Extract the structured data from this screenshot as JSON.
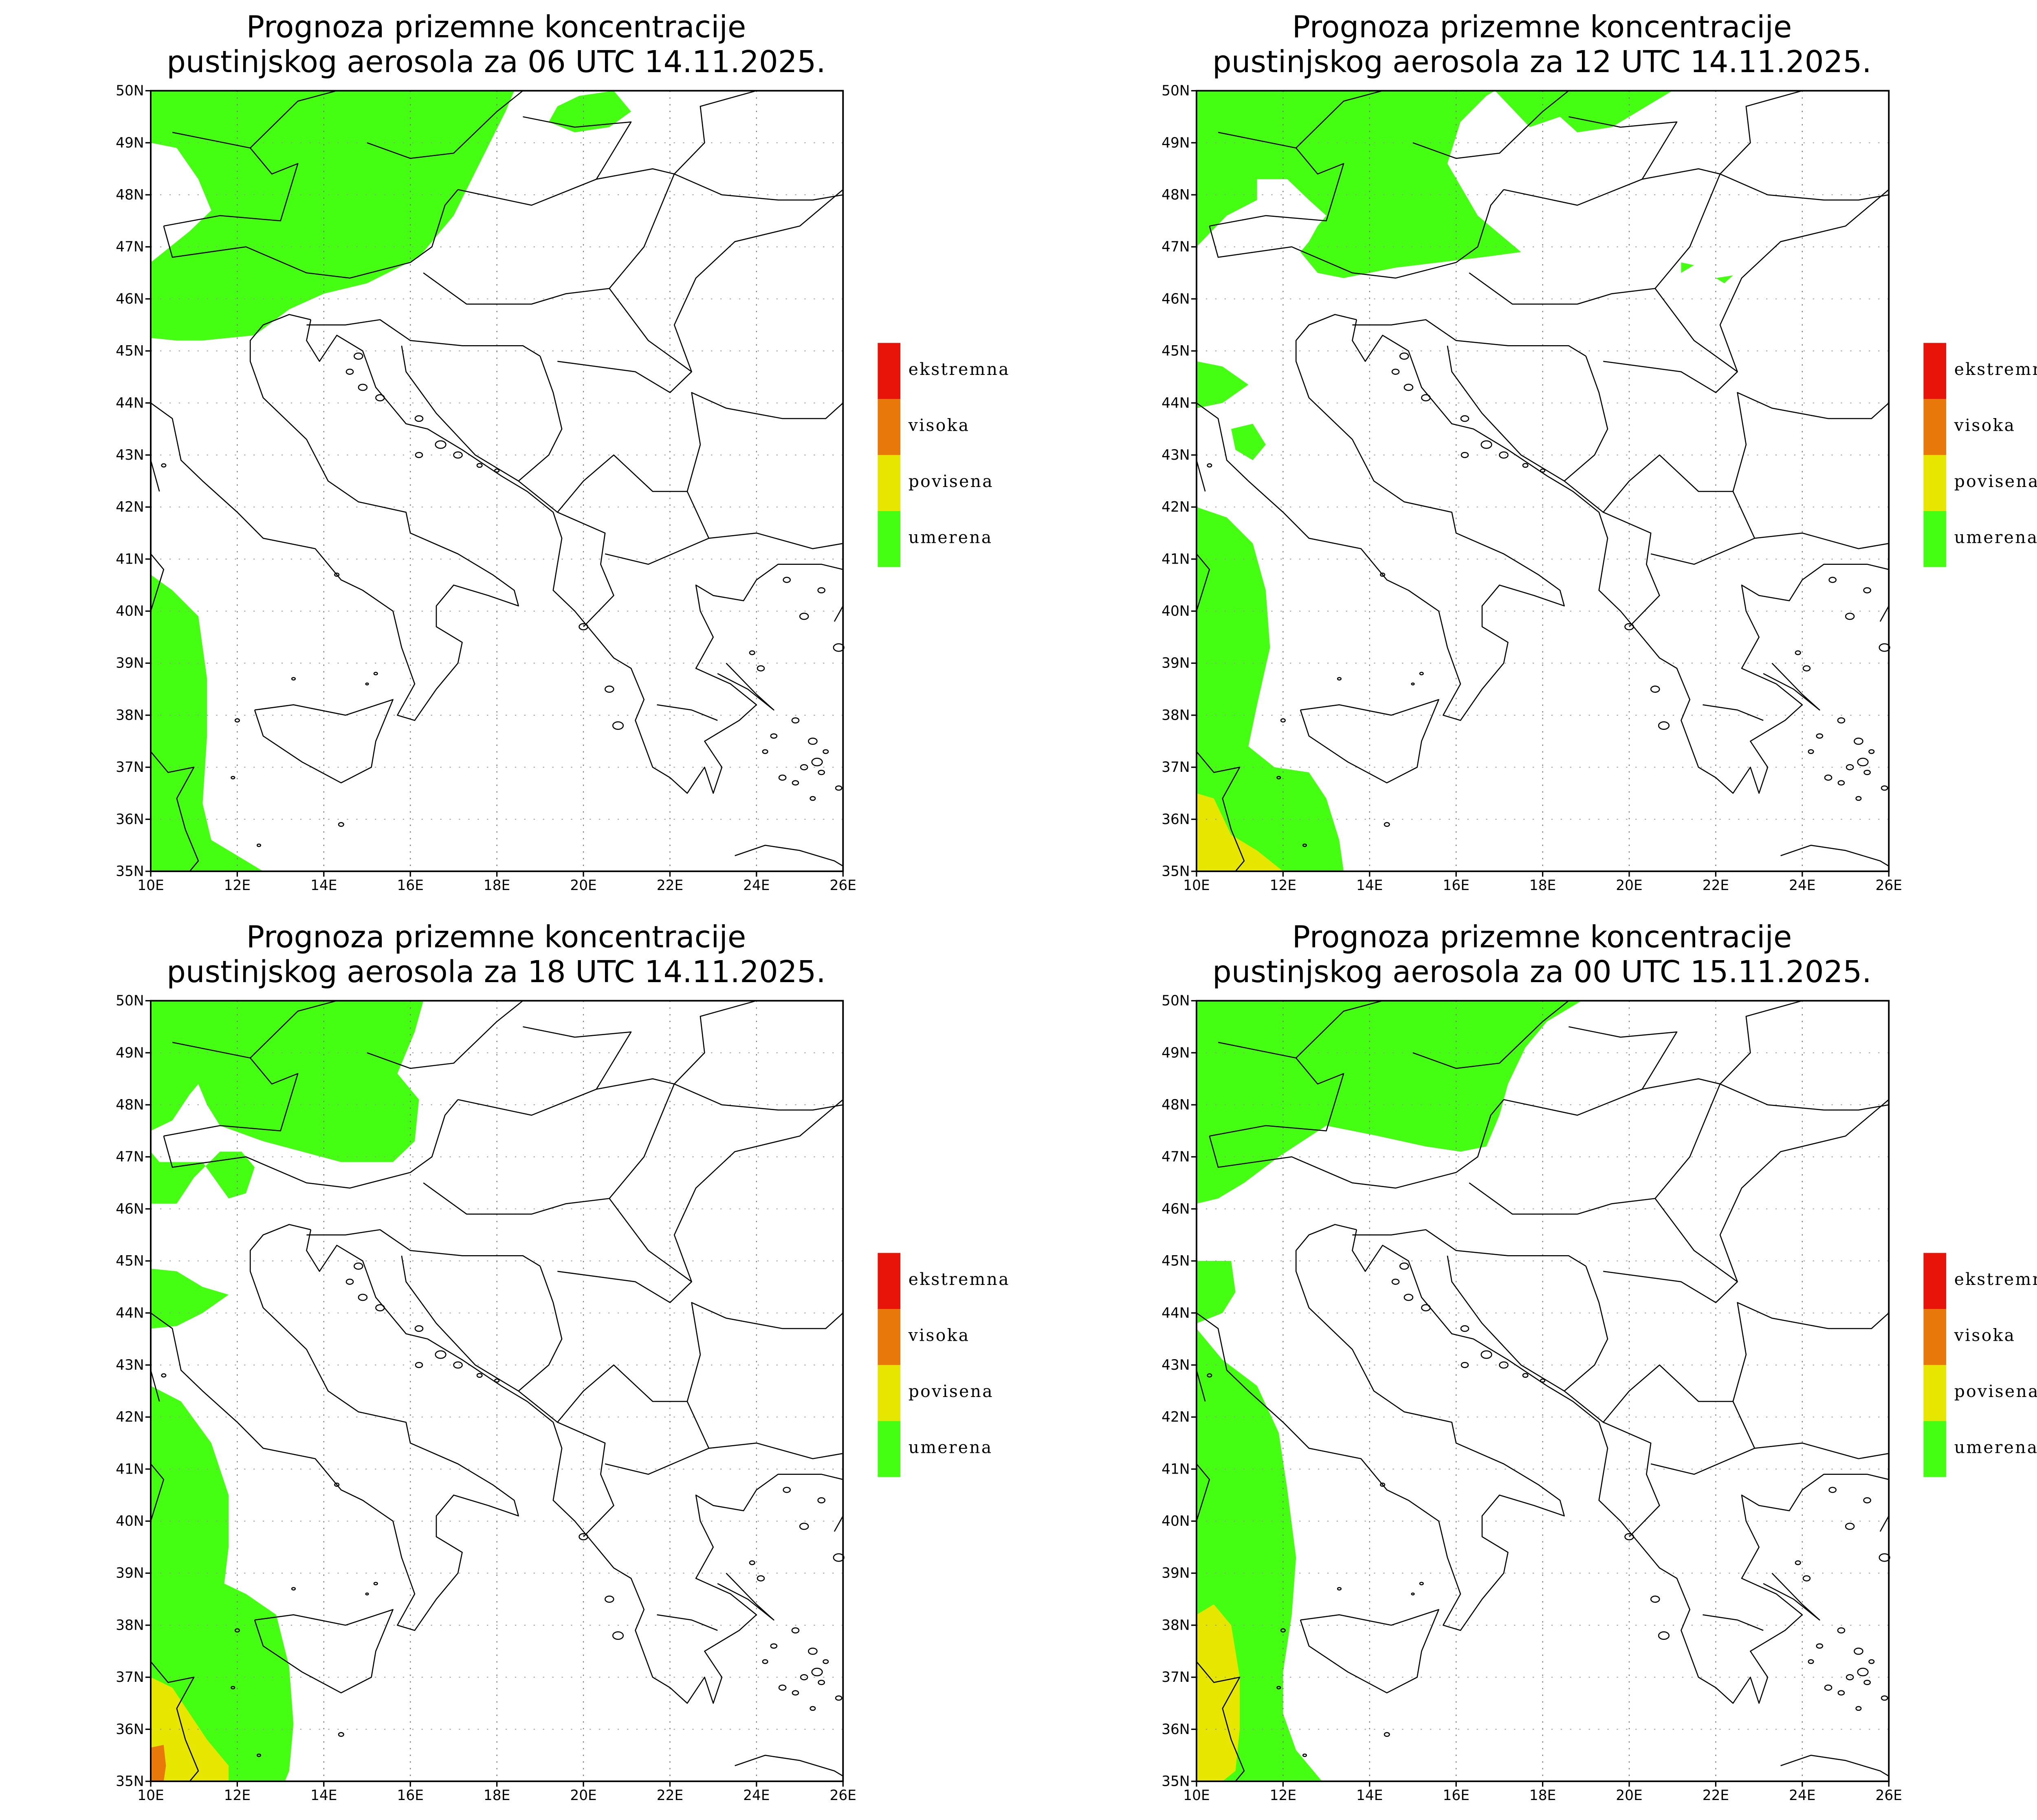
{
  "title_line1": "Prognoza prizemne koncentracije",
  "colors": {
    "umerena": "#44ff11",
    "povisena": "#e6e600",
    "visoka": "#e8780a",
    "ekstremna": "#e8140a"
  },
  "legend": [
    {
      "key": "ekstremna",
      "label": "ekstremna"
    },
    {
      "key": "visoka",
      "label": "visoka"
    },
    {
      "key": "povisena",
      "label": "povisena"
    },
    {
      "key": "umerena",
      "label": "umerena"
    }
  ],
  "axes": {
    "x_ticks": [
      "10E",
      "12E",
      "14E",
      "16E",
      "18E",
      "20E",
      "22E",
      "24E",
      "26E"
    ],
    "y_ticks": [
      "50N",
      "49N",
      "48N",
      "47N",
      "46N",
      "45N",
      "44N",
      "43N",
      "42N",
      "41N",
      "40N",
      "39N",
      "38N",
      "37N",
      "36N",
      "35N"
    ],
    "lon_range": [
      10,
      26
    ],
    "lat_range": [
      35,
      50
    ],
    "grid": true
  },
  "panels": [
    {
      "title_line2": "pustinjskog aerosola za 06 UTC 14.11.2025.",
      "regions": [
        {
          "level": "umerena",
          "pts": [
            [
              10,
              49
            ],
            [
              10.6,
              48.9
            ],
            [
              11.1,
              48.3
            ],
            [
              11.4,
              47.7
            ],
            [
              10.9,
              47.3
            ],
            [
              10,
              46.7
            ],
            [
              10,
              45.25
            ],
            [
              10.6,
              45.2
            ],
            [
              11.2,
              45.2
            ],
            [
              12.4,
              45.3
            ],
            [
              13.2,
              45.8
            ],
            [
              14,
              46.1
            ],
            [
              15,
              46.3
            ],
            [
              16.2,
              46.8
            ],
            [
              17,
              47.6
            ],
            [
              17.6,
              48.6
            ],
            [
              18.2,
              49.6
            ],
            [
              18.4,
              50
            ],
            [
              10,
              50
            ]
          ]
        },
        {
          "level": "umerena",
          "pts": [
            [
              19.2,
              49.4
            ],
            [
              19.4,
              49.7
            ],
            [
              19.9,
              49.9
            ],
            [
              20.7,
              50
            ],
            [
              21.1,
              49.6
            ],
            [
              20.6,
              49.3
            ],
            [
              19.8,
              49.2
            ]
          ]
        },
        {
          "level": "umerena",
          "pts": [
            [
              10,
              40.7
            ],
            [
              10.5,
              40.4
            ],
            [
              11.1,
              39.9
            ],
            [
              11.3,
              38.7
            ],
            [
              11.3,
              37.6
            ],
            [
              11.2,
              36.3
            ],
            [
              11.4,
              35.6
            ],
            [
              12.2,
              35.2
            ],
            [
              12.6,
              35
            ],
            [
              10,
              35
            ]
          ]
        }
      ]
    },
    {
      "title_line2": "pustinjskog aerosola za 12 UTC 14.11.2025.",
      "regions": [
        {
          "level": "umerena",
          "pts": [
            [
              10,
              47
            ],
            [
              10.7,
              47.6
            ],
            [
              11.4,
              47.9
            ],
            [
              11.4,
              48.3
            ],
            [
              12.1,
              48.3
            ],
            [
              12.6,
              47.9
            ],
            [
              13,
              47.6
            ],
            [
              12.8,
              47.4
            ],
            [
              12.6,
              47.1
            ],
            [
              12.4,
              46.9
            ],
            [
              12.8,
              46.5
            ],
            [
              13.4,
              46.4
            ],
            [
              14.6,
              46.6
            ],
            [
              16.6,
              46.8
            ],
            [
              17.5,
              46.9
            ],
            [
              16.5,
              47.6
            ],
            [
              15.8,
              48.6
            ],
            [
              16.1,
              49.4
            ],
            [
              16.7,
              49.9
            ],
            [
              16.9,
              50
            ],
            [
              10,
              50
            ]
          ]
        },
        {
          "level": "umerena",
          "pts": [
            [
              16.9,
              50
            ],
            [
              17.7,
              49.3
            ],
            [
              18.4,
              49.5
            ],
            [
              18.8,
              49.2
            ],
            [
              19.6,
              49.3
            ],
            [
              20.4,
              49.7
            ],
            [
              21,
              50
            ]
          ]
        },
        {
          "level": "umerena",
          "pts": [
            [
              10,
              44.8
            ],
            [
              10.6,
              44.7
            ],
            [
              11.2,
              44.35
            ],
            [
              10.6,
              44.0
            ],
            [
              10,
              43.9
            ]
          ]
        },
        {
          "level": "umerena",
          "pts": [
            [
              10.8,
              43.5
            ],
            [
              11.3,
              43.6
            ],
            [
              11.6,
              43.2
            ],
            [
              11.3,
              42.9
            ],
            [
              10.9,
              43.1
            ]
          ]
        },
        {
          "level": "umerena",
          "pts": [
            [
              21.2,
              46.7
            ],
            [
              21.5,
              46.65
            ],
            [
              21.2,
              46.5
            ]
          ]
        },
        {
          "level": "umerena",
          "pts": [
            [
              22.0,
              46.4
            ],
            [
              22.4,
              46.45
            ],
            [
              22.2,
              46.3
            ]
          ]
        },
        {
          "level": "umerena",
          "pts": [
            [
              10,
              42
            ],
            [
              10.7,
              41.8
            ],
            [
              11.3,
              41.3
            ],
            [
              11.6,
              40.4
            ],
            [
              11.7,
              39.3
            ],
            [
              11.4,
              38.2
            ],
            [
              11.2,
              37.4
            ],
            [
              11.8,
              37.0
            ],
            [
              12.6,
              36.9
            ],
            [
              13,
              36.4
            ],
            [
              13.3,
              35.6
            ],
            [
              13.4,
              35
            ],
            [
              10,
              35
            ]
          ]
        },
        {
          "level": "povisena",
          "pts": [
            [
              10,
              36.5
            ],
            [
              10.4,
              36.4
            ],
            [
              10.8,
              35.7
            ],
            [
              11.4,
              35.4
            ],
            [
              12,
              35
            ],
            [
              10,
              35
            ]
          ]
        }
      ]
    },
    {
      "title_line2": "pustinjskog aerosola za 18 UTC 14.11.2025.",
      "regions": [
        {
          "level": "umerena",
          "pts": [
            [
              10,
              47.5
            ],
            [
              10.5,
              47.7
            ],
            [
              10.9,
              48.2
            ],
            [
              11.1,
              48.4
            ],
            [
              11.3,
              48
            ],
            [
              11.6,
              47.6
            ],
            [
              12.6,
              47.3
            ],
            [
              14.4,
              46.9
            ],
            [
              15.6,
              46.9
            ],
            [
              16.1,
              47.3
            ],
            [
              16.2,
              48.1
            ],
            [
              15.7,
              48.6
            ],
            [
              16.1,
              49.4
            ],
            [
              16.3,
              50
            ],
            [
              10,
              50
            ]
          ]
        },
        {
          "level": "umerena",
          "pts": [
            [
              10,
              46.1
            ],
            [
              10.6,
              46.1
            ],
            [
              11.0,
              46.6
            ],
            [
              11.6,
              47.1
            ],
            [
              12.1,
              47.1
            ],
            [
              12.4,
              46.8
            ],
            [
              12.2,
              46.3
            ],
            [
              11.8,
              46.2
            ],
            [
              11.2,
              46.9
            ],
            [
              10.2,
              46.9
            ],
            [
              10,
              47.1
            ]
          ]
        },
        {
          "level": "umerena",
          "pts": [
            [
              10,
              44.85
            ],
            [
              10.6,
              44.8
            ],
            [
              11.2,
              44.5
            ],
            [
              11.8,
              44.35
            ],
            [
              11.2,
              44.0
            ],
            [
              10.6,
              43.75
            ],
            [
              10,
              43.7
            ]
          ]
        },
        {
          "level": "umerena",
          "pts": [
            [
              10,
              42.6
            ],
            [
              10.7,
              42.3
            ],
            [
              11.4,
              41.5
            ],
            [
              11.8,
              40.5
            ],
            [
              11.8,
              39.5
            ],
            [
              11.7,
              38.8
            ],
            [
              12.2,
              38.6
            ],
            [
              12.9,
              38.2
            ],
            [
              13.2,
              37.2
            ],
            [
              13.3,
              36.1
            ],
            [
              13.2,
              35.2
            ],
            [
              13.1,
              35
            ],
            [
              10,
              35
            ]
          ]
        },
        {
          "level": "povisena",
          "pts": [
            [
              10,
              37
            ],
            [
              10.5,
              36.8
            ],
            [
              10.9,
              36.3
            ],
            [
              11.3,
              35.8
            ],
            [
              11.8,
              35.3
            ],
            [
              11.8,
              35
            ],
            [
              10,
              35
            ]
          ]
        },
        {
          "level": "visoka",
          "pts": [
            [
              10,
              35.65
            ],
            [
              10.3,
              35.7
            ],
            [
              10.35,
              35.3
            ],
            [
              10.3,
              35
            ],
            [
              10,
              35
            ]
          ]
        }
      ]
    },
    {
      "title_line2": "pustinjskog aerosola za 00 UTC 15.11.2025.",
      "regions": [
        {
          "level": "umerena",
          "pts": [
            [
              10,
              46.1
            ],
            [
              10.5,
              46.2
            ],
            [
              11.1,
              46.5
            ],
            [
              11.9,
              47.0
            ],
            [
              13.0,
              47.6
            ],
            [
              14.2,
              47.4
            ],
            [
              15.3,
              47.2
            ],
            [
              16.1,
              47.1
            ],
            [
              16.7,
              47.2
            ],
            [
              17.0,
              47.8
            ],
            [
              17.2,
              48.4
            ],
            [
              17.6,
              49.1
            ],
            [
              18.1,
              49.6
            ],
            [
              18.9,
              50
            ],
            [
              10,
              50
            ]
          ]
        },
        {
          "level": "umerena",
          "pts": [
            [
              10,
              45.0
            ],
            [
              10.8,
              45.0
            ],
            [
              10.9,
              44.4
            ],
            [
              10.6,
              44.0
            ],
            [
              10,
              43.8
            ]
          ]
        },
        {
          "level": "umerena",
          "pts": [
            [
              10,
              43.7
            ],
            [
              10.6,
              43.1
            ],
            [
              11.4,
              42.6
            ],
            [
              11.9,
              41.7
            ],
            [
              12.1,
              40.6
            ],
            [
              12.3,
              39.3
            ],
            [
              12.2,
              38.2
            ],
            [
              12.0,
              37.1
            ],
            [
              12.0,
              36.3
            ],
            [
              12.3,
              35.6
            ],
            [
              12.9,
              35
            ],
            [
              10,
              35
            ]
          ]
        },
        {
          "level": "povisena",
          "pts": [
            [
              10,
              38.2
            ],
            [
              10.4,
              38.4
            ],
            [
              10.8,
              38.0
            ],
            [
              11.0,
              37.0
            ],
            [
              11.0,
              36.0
            ],
            [
              10.9,
              35.2
            ],
            [
              10.6,
              35
            ],
            [
              10,
              35
            ]
          ]
        }
      ]
    }
  ]
}
